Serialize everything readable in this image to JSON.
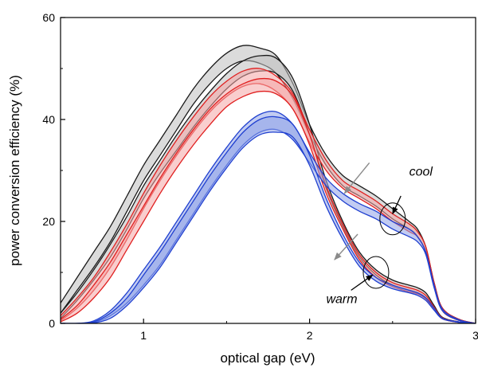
{
  "chart_data": {
    "type": "line",
    "xlabel": "optical gap (eV)",
    "ylabel": "power conversion efficiency (%)",
    "xlim": [
      0.5,
      3.0
    ],
    "ylim": [
      0,
      60
    ],
    "xticks": [
      1,
      2,
      3
    ],
    "yticks": [
      0,
      20,
      40,
      60
    ],
    "xtick_labels": [
      "1",
      "2",
      "3"
    ],
    "ytick_labels": [
      "0",
      "20",
      "40",
      "60"
    ],
    "grid": false,
    "legend": "none",
    "x": [
      0.5,
      0.6,
      0.7,
      0.8,
      0.9,
      1.0,
      1.1,
      1.2,
      1.3,
      1.4,
      1.5,
      1.6,
      1.7,
      1.8,
      1.9,
      2.0,
      2.1,
      2.2,
      2.3,
      2.4,
      2.5,
      2.6,
      2.65,
      2.7,
      2.75,
      2.8,
      2.9,
      3.0
    ],
    "groups": [
      {
        "color": "#1a1a1a",
        "fill": "#bdbdbd",
        "bands": [
          {
            "upper": [
              4,
              9,
              14,
              19,
              25,
              31,
              36,
              41,
              46,
              50,
              53,
              54.5,
              54,
              52.5,
              47,
              39,
              33,
              29,
              27,
              25,
              22.5,
              20,
              18.5,
              15,
              8,
              3,
              0.8,
              0
            ],
            "lower": [
              2,
              6.5,
              11,
              16,
              22,
              28,
              33,
              38,
              43,
              47,
              50,
              51.5,
              51,
              49,
              44,
              37,
              31,
              27,
              25,
              23,
              20.5,
              18.5,
              17,
              14,
              7.5,
              2.5,
              0.6,
              0
            ]
          },
          {
            "upper": [
              2,
              6,
              10.5,
              15.5,
              21,
              27,
              32,
              37,
              41.5,
              45.5,
              49,
              51.5,
              52.5,
              52,
              48,
              39,
              28,
              20,
              14,
              10.5,
              8.5,
              7.5,
              7,
              6,
              3.5,
              1.2,
              0.3,
              0
            ],
            "lower": [
              1,
              4.5,
              8.5,
              13,
              18.5,
              24.5,
              29.5,
              34,
              38.5,
              42.5,
              46,
              48.5,
              49.5,
              49,
              45.5,
              37,
              26.5,
              19,
              13,
              9.5,
              7.5,
              6.5,
              6,
              5,
              2.8,
              1,
              0.2,
              0
            ]
          }
        ]
      },
      {
        "color": "#e02020",
        "fill": "#f4a6a6",
        "bands": [
          {
            "upper": [
              1.5,
              5,
              9,
              14,
              19.5,
              25.5,
              31,
              36,
              40.5,
              44.5,
              47.5,
              49.5,
              50,
              48.5,
              45,
              38,
              32,
              28,
              26,
              24,
              21.5,
              19.5,
              18,
              15,
              8,
              3,
              0.8,
              0
            ],
            "lower": [
              0.5,
              3,
              6.5,
              11,
              16.5,
              22.5,
              28,
              33,
              37.5,
              41.5,
              44.5,
              46.5,
              47,
              45.5,
              42,
              35.5,
              30,
              26.5,
              24.5,
              22.5,
              20,
              18,
              17,
              14,
              7.5,
              2.5,
              0.6,
              0
            ]
          },
          {
            "upper": [
              0.8,
              3.5,
              7.5,
              12,
              17.5,
              23,
              28.5,
              33.5,
              38,
              42,
              45,
              47,
              48,
              47.5,
              44.5,
              37,
              27,
              19.5,
              13.5,
              10,
              8,
              7,
              6.5,
              5.5,
              3.2,
              1.1,
              0.3,
              0
            ],
            "lower": [
              0.3,
              2,
              5,
              9,
              14.5,
              20,
              25.5,
              30.5,
              35,
              39,
              42.5,
              44.5,
              45.5,
              45,
              42,
              35,
              25.5,
              18.5,
              12.5,
              9,
              7.2,
              6.2,
              5.8,
              4.8,
              2.8,
              0.9,
              0.2,
              0
            ]
          }
        ]
      },
      {
        "color": "#2040d0",
        "fill": "#8fa3e8",
        "bands": [
          {
            "upper": [
              0,
              0,
              0.5,
              2.5,
              6,
              10.5,
              15,
              20,
              25,
              30,
              34.5,
              38.5,
              41,
              41.5,
              39,
              33.5,
              28.5,
              25.5,
              23.5,
              22,
              20,
              18.5,
              17,
              14,
              7.5,
              2.8,
              0.7,
              0
            ],
            "lower": [
              0,
              0,
              0.2,
              1.5,
              4,
              7.5,
              11.5,
              16.5,
              21.5,
              26.5,
              31,
              35,
              37.5,
              38,
              36,
              31.5,
              27,
              24,
              22,
              20.5,
              18.5,
              17,
              16,
              13.5,
              7,
              2.5,
              0.6,
              0
            ]
          },
          {
            "upper": [
              0,
              0,
              0.3,
              2,
              5,
              9.5,
              14,
              19,
              24,
              29,
              33.5,
              37.5,
              40,
              40.5,
              39,
              33,
              24.5,
              17.5,
              12,
              9,
              7.5,
              6.5,
              6,
              5,
              3,
              1,
              0.3,
              0
            ],
            "lower": [
              0,
              0,
              0.1,
              1,
              3.5,
              7,
              11,
              16,
              21,
              26,
              30.5,
              34.5,
              37,
              37.5,
              36.5,
              31,
              23,
              16.5,
              11.2,
              8.3,
              6.8,
              6,
              5.5,
              4.5,
              2.6,
              0.9,
              0.2,
              0
            ]
          }
        ]
      }
    ],
    "annotations": [
      {
        "text": "cool",
        "x": 2.6,
        "y": 29
      },
      {
        "text": "warm",
        "x": 2.1,
        "y": 4
      }
    ],
    "circles": [
      {
        "x": 2.5,
        "y": 20.5
      },
      {
        "x": 2.4,
        "y": 10
      }
    ],
    "pointer_arrows": [
      {
        "from": [
          2.55,
          25
        ],
        "to": [
          2.5,
          21.5
        ]
      },
      {
        "from": [
          2.25,
          6.5
        ],
        "to": [
          2.38,
          9.5
        ]
      }
    ],
    "grey_arrows": [
      {
        "from": [
          2.36,
          31.5
        ],
        "to": [
          2.21,
          25.5
        ]
      },
      {
        "from": [
          2.29,
          17.5
        ],
        "to": [
          2.15,
          12.5
        ]
      }
    ]
  }
}
